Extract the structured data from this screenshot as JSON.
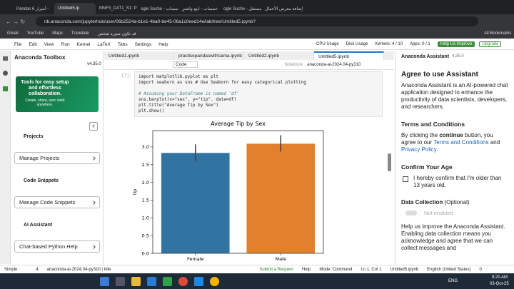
{
  "browser": {
    "tabs": [
      "Pandas أسرار 6 -",
      "Untitled5.ip",
      "MNF3_DAT1_S1: Proj",
      "ogle Suche - خمسات",
      "خمسات - ابيع واشترِ",
      "ogle Suche - مستقل",
      "إضافة معرض الأعمال"
    ],
    "url": "nb.anaconda.com/jupyterhub/user/06b2524a-b1e1-4ba0-be45-06a1c0eed14e/lab/tree/Untitled5.ipynb?",
    "bookmarks": [
      "Gmail",
      "YouTube",
      "Maps",
      "Translate",
      "قد تكون صورة شخص"
    ],
    "all_bookmarks": "All Bookmarks"
  },
  "menu": {
    "items": [
      "File",
      "Edit",
      "View",
      "Run",
      "Kernel",
      "LaTeX",
      "Tabs",
      "Settings",
      "Help"
    ],
    "cpu": "CPU Usage",
    "disk": "Disk Usage",
    "kernels": "Kernels: 4 / 10",
    "apps": "Apps: 0 / 1",
    "help_improve": "Help Us Improve",
    "upgrade": "Upgrade"
  },
  "toolbox": {
    "title": "Anaconda Toolbox",
    "version": "v4.35.0",
    "banner": {
      "headline": "Tools for easy setup and effortless collaboration.",
      "sub": "Create, share, sync work anywhere."
    },
    "sections": [
      {
        "heading": "Projects",
        "button": "Manage Projects"
      },
      {
        "heading": "Code Snippets",
        "button": "Manage Code Snippets"
      },
      {
        "heading": "AI Assistant",
        "button": "Chat-based Python Help"
      }
    ]
  },
  "notebook": {
    "tabs": [
      "Untitled1.ipynb",
      "practisepandaswithsama.ipynb",
      "Untitled2.ipynb",
      "Untitled5.ipynb"
    ],
    "cell_type": "Code",
    "notebook_label": "Notebook",
    "kernel": "anaconda-ai-2024.04-py310",
    "prompt": "[7]:",
    "code": [
      "import matplotlib.pyplot as plt",
      "import seaborn as sns # Use Seaborn for easy categorical plotting",
      "# Assuming your DataFrame is named 'df'",
      "sns.barplot(x=\"sex\", y=\"tip\", data=df)",
      "plt.title(\"Average Tip by Sex\")",
      "plt.show()"
    ]
  },
  "chart_data": {
    "type": "bar",
    "title": "Average Tip by Sex",
    "y_label": "tip",
    "categories": [
      "Female",
      "Male"
    ],
    "values": [
      2.83,
      3.09
    ],
    "error_low": [
      2.6,
      2.87
    ],
    "error_high": [
      3.07,
      3.33
    ],
    "colors": [
      "#3274a1",
      "#e1812c"
    ],
    "ylim": [
      0,
      3.46
    ],
    "yticks": [
      {
        "value": 0,
        "label": "0.0"
      },
      {
        "value": 0.5,
        "label": "0.5"
      },
      {
        "value": 1,
        "label": "1.0"
      },
      {
        "value": 1.5,
        "label": "1.5"
      },
      {
        "value": 2,
        "label": "2.0"
      },
      {
        "value": 2.5,
        "label": "2.5"
      },
      {
        "value": 3,
        "label": "3.0"
      }
    ],
    "grid": false
  },
  "assistant": {
    "title": "Anaconda Assistant",
    "version": "4.35.0",
    "heading": "Agree to use Assistant",
    "intro": "Anaconda Assistant is an AI-powered chat application designed to enhance the productivity of data scientists, developers, and researchers.",
    "terms_heading": "Terms and Conditions",
    "terms": [
      "By clicking the ",
      "continue",
      " button, you agree to our ",
      "Terms and Conditions",
      " and ",
      "Privacy Policy",
      "."
    ],
    "age_heading": "Confirm Your Age",
    "age_text": "I hereby confirm that I'm older than 13 years old.",
    "data_heading": "Data Collection",
    "data_optional": "(Optional)",
    "toggle": "Not enabled",
    "data_text": "Help us improve the Anaconda Assistant. Enabling data collection means you acknowledge and agree that we can collect messages and"
  },
  "status": {
    "mode_toggle": "Simple",
    "count": 4,
    "kernel": "anaconda-ai-2024.04-py310 | Idle",
    "submit": "Submit a Request",
    "help": "Help",
    "mode": "Mode: Command",
    "position": "Ln 1, Col 1",
    "file": "Untitled5.ipynb",
    "language": "English (United States)",
    "notifications": 0
  },
  "taskbar": {
    "lang": "ENG",
    "time": "9:20 AM",
    "date": "03-Oct-25"
  }
}
